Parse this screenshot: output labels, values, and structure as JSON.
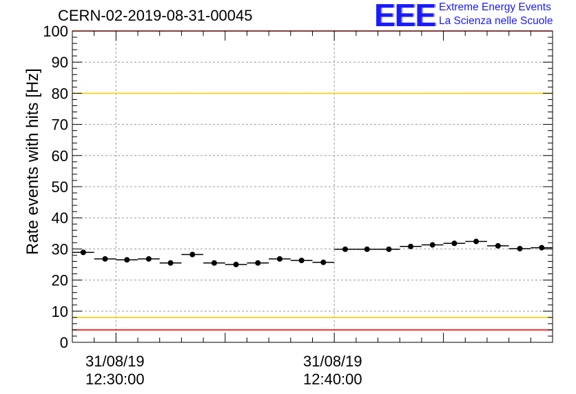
{
  "header": {
    "run_title": "CERN-02-2019-08-31-00045",
    "logo_mark": "EEE",
    "logo_line1": "Extreme Energy Events",
    "logo_line2": "La Scienza nelle Scuole"
  },
  "colors": {
    "red_limit": "#ff0000",
    "yellow_limit": "#ffcc00",
    "logo_blue": "#1a1aff",
    "marker": "#000000",
    "grid": "#999999"
  },
  "chart_data": {
    "type": "scatter",
    "ylabel": "Rate events with hits [Hz]",
    "ylim": [
      0,
      100
    ],
    "y_ticks": [
      0,
      10,
      20,
      30,
      40,
      50,
      60,
      70,
      80,
      90,
      100
    ],
    "x_tick_labels": [
      {
        "date": "31/08/19",
        "time": "12:30:00"
      },
      {
        "date": "31/08/19",
        "time": "12:40:00"
      }
    ],
    "xlim": [
      "12:28:00",
      "12:50:00"
    ],
    "bin_width_minutes": 1,
    "grid": true,
    "reference_lines": [
      {
        "y": 100,
        "color": "red"
      },
      {
        "y": 80,
        "color": "yellow"
      },
      {
        "y": 8,
        "color": "yellow"
      },
      {
        "y": 4,
        "color": "red"
      }
    ],
    "series": [
      {
        "x": [
          "12:28:00",
          "12:29:00",
          "12:30:00",
          "12:31:00",
          "12:32:00",
          "12:33:00",
          "12:34:00",
          "12:35:00",
          "12:36:00",
          "12:37:00",
          "12:38:00",
          "12:39:00",
          "12:40:00",
          "12:41:00",
          "12:42:00",
          "12:43:00",
          "12:44:00",
          "12:45:00",
          "12:46:00",
          "12:47:00",
          "12:48:00",
          "12:49:00"
        ],
        "values": [
          28.9,
          26.8,
          26.5,
          26.8,
          25.5,
          28.2,
          25.5,
          25.0,
          25.5,
          26.8,
          26.3,
          25.7,
          29.9,
          29.9,
          29.9,
          30.8,
          31.3,
          31.8,
          32.4,
          31.0,
          30.1,
          30.4
        ]
      }
    ]
  }
}
